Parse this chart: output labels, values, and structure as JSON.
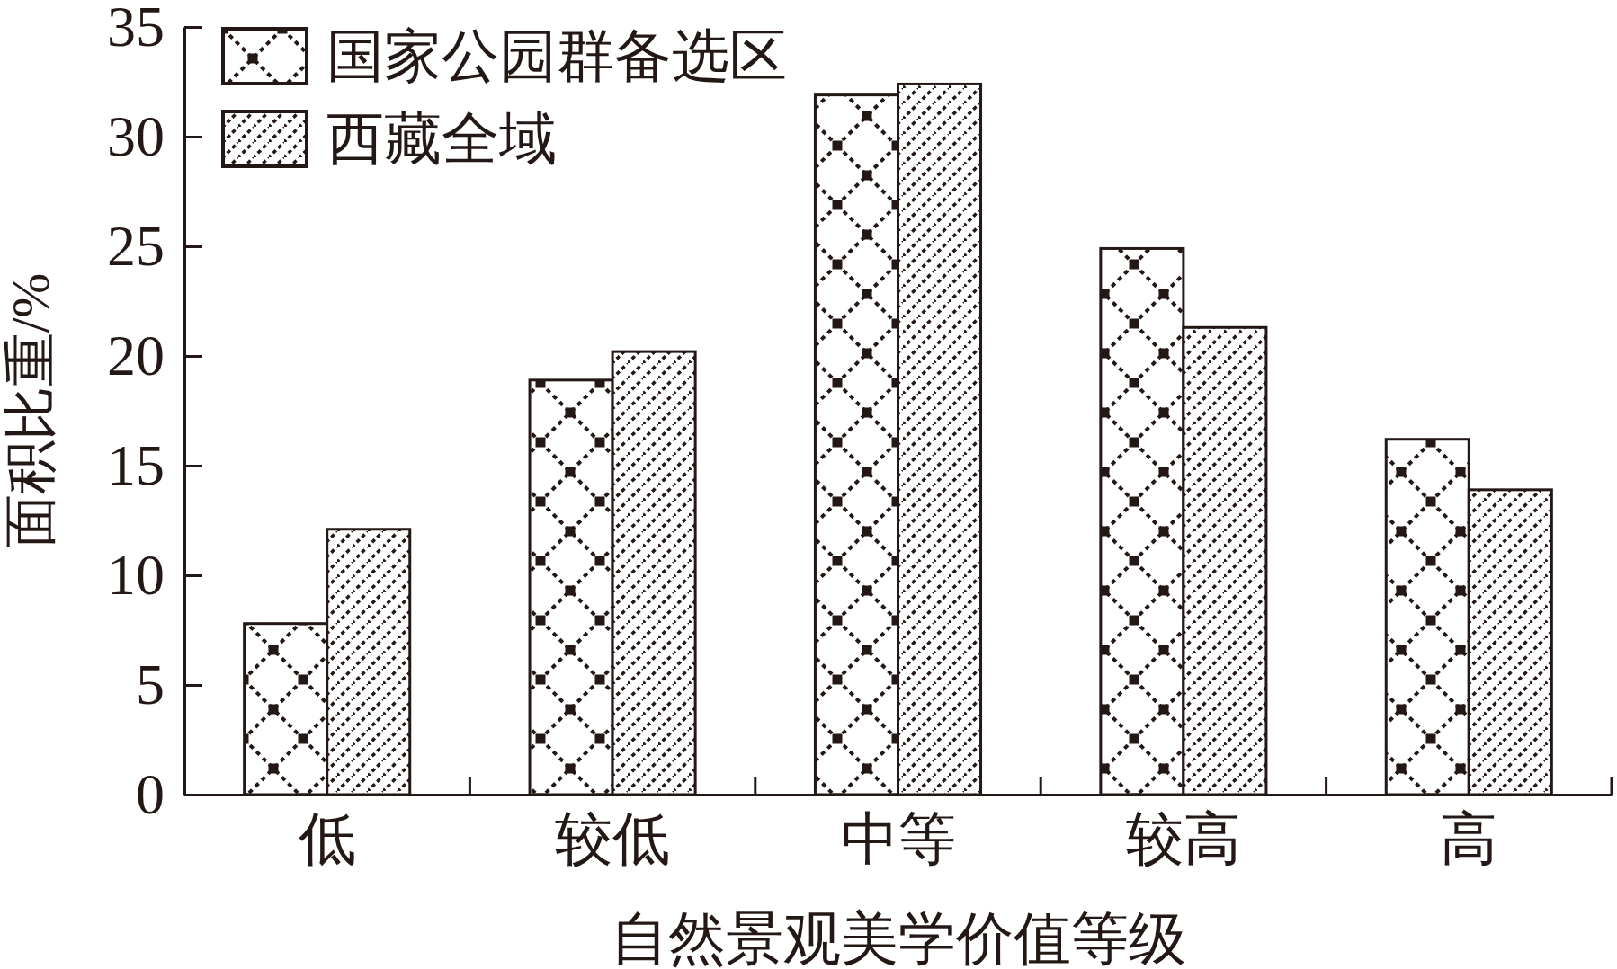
{
  "chart_data": {
    "type": "bar",
    "xlabel": "自然景观美学价值等级",
    "ylabel": "面积比重/%",
    "categories": [
      "低",
      "较低",
      "中等",
      "较高",
      "高"
    ],
    "series": [
      {
        "name": "国家公园群备选区",
        "color": "#231815",
        "values": [
          7.8,
          18.9,
          31.9,
          24.9,
          16.2
        ]
      },
      {
        "name": "西藏全域",
        "color": "#231815",
        "values": [
          12.1,
          20.2,
          32.4,
          21.3,
          13.9
        ]
      }
    ],
    "ylim": [
      0,
      35
    ],
    "yticks": [
      0,
      5,
      10,
      15,
      20,
      25,
      30,
      35
    ],
    "legend": "top left"
  }
}
